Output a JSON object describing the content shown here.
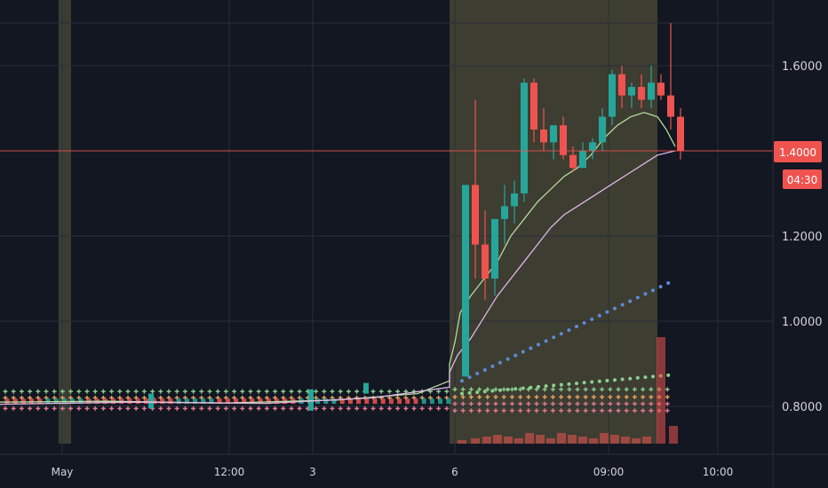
{
  "chart_data": {
    "type": "candlestick",
    "title": "",
    "xlabel": "",
    "ylabel": "",
    "ylim": [
      0.72,
      1.76
    ],
    "grid": true,
    "x_ticks": [
      "May",
      "12:00",
      "3",
      "6",
      "09:00",
      "10:00"
    ],
    "y_ticks": [
      "1.6000",
      "1.4000",
      "1.2000",
      "1.0000",
      "0.8000"
    ],
    "y_tick_values": [
      1.6,
      1.4,
      1.2,
      1.0,
      0.8
    ],
    "current_price": {
      "label": "1.4000",
      "value": 1.4,
      "countdown": "04:30"
    },
    "colors": {
      "up": "#26a69a",
      "down": "#ef5350",
      "ma_fast": "#b5d99c",
      "ma_slow": "#e0b8e8",
      "dots_blue": "#5b8bd6",
      "dots_green": "#8ccf90",
      "dots_orange": "#e3a664",
      "dots_pink": "#e57a9a",
      "session": "#57553a",
      "grid": "#2a2e39",
      "price_line": "#ef5350"
    },
    "candles_session": [
      [
        0.87,
        1.3,
        1.12,
        1.32
      ],
      [
        1.32,
        1.52,
        1.1,
        1.18
      ],
      [
        1.18,
        1.26,
        1.05,
        1.1
      ],
      [
        1.1,
        1.24,
        1.06,
        1.24
      ],
      [
        1.24,
        1.32,
        1.18,
        1.27
      ],
      [
        1.27,
        1.33,
        1.23,
        1.3
      ],
      [
        1.3,
        1.57,
        1.28,
        1.56
      ],
      [
        1.56,
        1.57,
        1.42,
        1.45
      ],
      [
        1.45,
        1.5,
        1.4,
        1.42
      ],
      [
        1.42,
        1.46,
        1.38,
        1.46
      ],
      [
        1.46,
        1.48,
        1.38,
        1.39
      ],
      [
        1.39,
        1.41,
        1.35,
        1.36
      ],
      [
        1.36,
        1.42,
        1.36,
        1.4
      ],
      [
        1.4,
        1.43,
        1.38,
        1.42
      ],
      [
        1.42,
        1.5,
        1.4,
        1.48
      ],
      [
        1.48,
        1.59,
        1.46,
        1.58
      ],
      [
        1.58,
        1.6,
        1.5,
        1.53
      ],
      [
        1.53,
        1.56,
        1.5,
        1.55
      ],
      [
        1.55,
        1.58,
        1.5,
        1.52
      ],
      [
        1.52,
        1.6,
        1.5,
        1.56
      ],
      [
        1.56,
        1.58,
        1.52,
        1.53
      ],
      [
        1.53,
        1.7,
        1.45,
        1.48
      ],
      [
        1.48,
        1.5,
        1.38,
        1.4
      ]
    ],
    "ma_fast": [
      [
        506,
        0.9
      ],
      [
        512,
        0.95
      ],
      [
        518,
        1.02
      ],
      [
        530,
        1.06
      ],
      [
        545,
        1.1
      ],
      [
        560,
        1.14
      ],
      [
        575,
        1.2
      ],
      [
        590,
        1.24
      ],
      [
        605,
        1.28
      ],
      [
        620,
        1.31
      ],
      [
        635,
        1.34
      ],
      [
        650,
        1.36
      ],
      [
        665,
        1.39
      ],
      [
        680,
        1.43
      ],
      [
        695,
        1.46
      ],
      [
        710,
        1.48
      ],
      [
        725,
        1.49
      ],
      [
        740,
        1.48
      ],
      [
        750,
        1.45
      ],
      [
        760,
        1.41
      ]
    ],
    "ma_slow": [
      [
        506,
        0.88
      ],
      [
        515,
        0.92
      ],
      [
        530,
        0.96
      ],
      [
        545,
        1.01
      ],
      [
        560,
        1.06
      ],
      [
        575,
        1.1
      ],
      [
        590,
        1.14
      ],
      [
        605,
        1.18
      ],
      [
        620,
        1.22
      ],
      [
        635,
        1.25
      ],
      [
        650,
        1.27
      ],
      [
        665,
        1.29
      ],
      [
        680,
        1.31
      ],
      [
        695,
        1.33
      ],
      [
        710,
        1.35
      ],
      [
        725,
        1.37
      ],
      [
        740,
        1.39
      ],
      [
        760,
        1.4
      ]
    ],
    "volume_bars": [
      [
        520,
        0.02
      ],
      [
        535,
        0.03
      ],
      [
        548,
        0.04
      ],
      [
        560,
        0.05
      ],
      [
        572,
        0.04
      ],
      [
        584,
        0.03
      ],
      [
        596,
        0.06
      ],
      [
        608,
        0.05
      ],
      [
        620,
        0.03
      ],
      [
        632,
        0.06
      ],
      [
        644,
        0.05
      ],
      [
        656,
        0.04
      ],
      [
        668,
        0.03
      ],
      [
        680,
        0.06
      ],
      [
        692,
        0.05
      ],
      [
        704,
        0.04
      ],
      [
        716,
        0.03
      ],
      [
        728,
        0.04
      ],
      [
        744,
        0.6
      ],
      [
        758,
        0.1
      ]
    ]
  }
}
